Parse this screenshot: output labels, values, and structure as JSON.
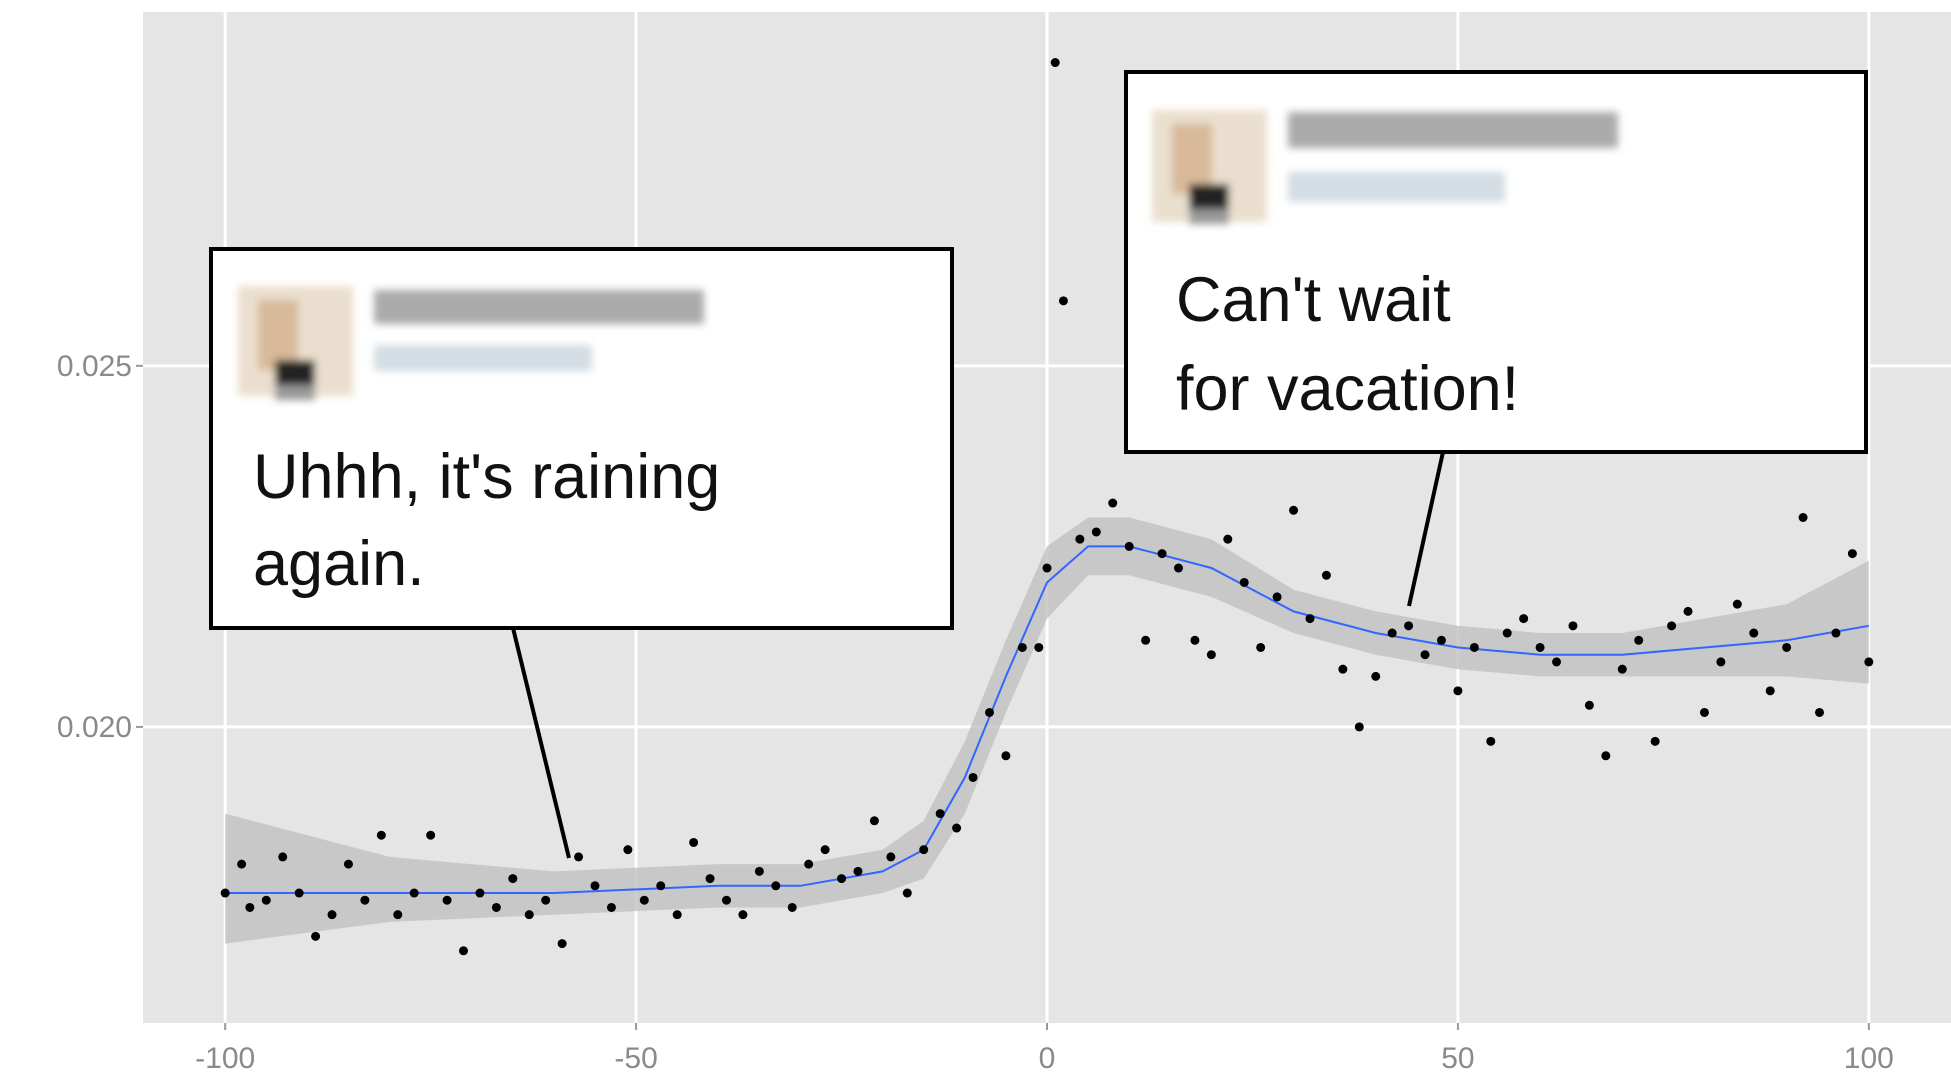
{
  "chart_data": {
    "type": "scatter",
    "x": [
      -100,
      -98,
      -97,
      -95,
      -93,
      -91,
      -89,
      -87,
      -85,
      -83,
      -81,
      -79,
      -77,
      -75,
      -73,
      -71,
      -69,
      -67,
      -65,
      -63,
      -61,
      -59,
      -57,
      -55,
      -53,
      -51,
      -49,
      -47,
      -45,
      -43,
      -41,
      -39,
      -37,
      -35,
      -33,
      -31,
      -29,
      -27,
      -25,
      -23,
      -21,
      -19,
      -17,
      -15,
      -13,
      -11,
      -9,
      -7,
      -5,
      -3,
      -1,
      0,
      1,
      2,
      4,
      6,
      8,
      10,
      12,
      14,
      16,
      18,
      20,
      22,
      24,
      26,
      28,
      30,
      32,
      34,
      36,
      38,
      40,
      42,
      44,
      46,
      48,
      50,
      52,
      54,
      56,
      58,
      60,
      62,
      64,
      66,
      68,
      70,
      72,
      74,
      76,
      78,
      80,
      82,
      84,
      86,
      88,
      90,
      92,
      94,
      96,
      98,
      100
    ],
    "values": [
      0.0177,
      0.0181,
      0.0175,
      0.0176,
      0.0182,
      0.0177,
      0.0171,
      0.0174,
      0.0181,
      0.0176,
      0.0185,
      0.0174,
      0.0177,
      0.0185,
      0.0176,
      0.0169,
      0.0177,
      0.0175,
      0.0179,
      0.0174,
      0.0176,
      0.017,
      0.0182,
      0.0178,
      0.0175,
      0.0183,
      0.0176,
      0.0178,
      0.0174,
      0.0184,
      0.0179,
      0.0176,
      0.0174,
      0.018,
      0.0178,
      0.0175,
      0.0181,
      0.0183,
      0.0179,
      0.018,
      0.0187,
      0.0182,
      0.0177,
      0.0183,
      0.0188,
      0.0186,
      0.0193,
      0.0202,
      0.0196,
      0.0211,
      0.0211,
      0.0222,
      0.0292,
      0.0259,
      0.0226,
      0.0227,
      0.0231,
      0.0225,
      0.0212,
      0.0224,
      0.0222,
      0.0212,
      0.021,
      0.0226,
      0.022,
      0.0211,
      0.0218,
      0.023,
      0.0215,
      0.0221,
      0.0208,
      0.02,
      0.0207,
      0.0213,
      0.0214,
      0.021,
      0.0212,
      0.0205,
      0.0211,
      0.0198,
      0.0213,
      0.0215,
      0.0211,
      0.0209,
      0.0214,
      0.0203,
      0.0196,
      0.0208,
      0.0212,
      0.0198,
      0.0214,
      0.0216,
      0.0202,
      0.0209,
      0.0217,
      0.0213,
      0.0205,
      0.0211,
      0.0229,
      0.0202,
      0.0213,
      0.0224,
      0.0209
    ],
    "color": "#000000",
    "smooth": {
      "color": "#3366ff",
      "band_color": "#bdbdbd",
      "x": [
        -100,
        -80,
        -60,
        -40,
        -30,
        -20,
        -15,
        -10,
        -5,
        0,
        5,
        10,
        20,
        30,
        40,
        50,
        60,
        70,
        80,
        90,
        100
      ],
      "y": [
        0.0177,
        0.0177,
        0.0177,
        0.0178,
        0.0178,
        0.018,
        0.0183,
        0.0193,
        0.0207,
        0.022,
        0.0225,
        0.0225,
        0.0222,
        0.0216,
        0.0213,
        0.0211,
        0.021,
        0.021,
        0.0211,
        0.0212,
        0.0214
      ],
      "lower": [
        0.017,
        0.0173,
        0.0174,
        0.0175,
        0.0175,
        0.0177,
        0.0179,
        0.0188,
        0.0202,
        0.0215,
        0.0221,
        0.0221,
        0.0218,
        0.0213,
        0.021,
        0.0208,
        0.0207,
        0.0207,
        0.0207,
        0.0207,
        0.0206
      ],
      "upper": [
        0.0188,
        0.0182,
        0.018,
        0.0181,
        0.0181,
        0.0183,
        0.0187,
        0.0198,
        0.0212,
        0.0225,
        0.0229,
        0.0229,
        0.0226,
        0.0219,
        0.0216,
        0.0214,
        0.0213,
        0.0213,
        0.0215,
        0.0217,
        0.0223
      ]
    },
    "xlim": [
      -110,
      110
    ],
    "ylim": [
      0.0159,
      0.0299
    ],
    "xticks": [
      -100,
      -50,
      0,
      50,
      100
    ],
    "yticks": [
      {
        "value": 0.02,
        "label": "0.020"
      },
      {
        "value": 0.025,
        "label": "0.025"
      }
    ],
    "grid": true,
    "annotations": [
      {
        "lines": [
          "Uhhh, it's raining",
          "again."
        ]
      },
      {
        "lines": [
          "Can't wait",
          "for vacation!"
        ]
      }
    ]
  }
}
